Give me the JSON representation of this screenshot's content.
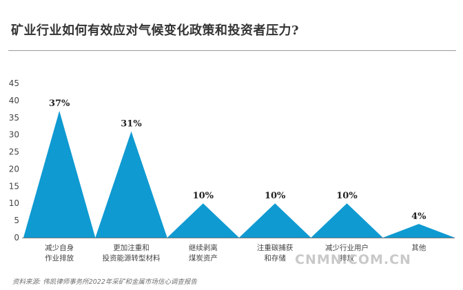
{
  "title": "矿业行业如何有效应对气候变化政策和投资者压力?",
  "source": "资料来源: 伟凯律师事务所2022年采矿和金属市场信心调查报告",
  "watermark": "CNMN.COM.CN",
  "chart_data": {
    "type": "area",
    "shape": "triangle",
    "categories": [
      [
        "减少自身",
        "作业排放"
      ],
      [
        "更加注重和",
        "投资能源转型材料"
      ],
      [
        "继续剥离",
        "煤炭资产"
      ],
      [
        "注重碳捕获",
        "和存储"
      ],
      [
        "减少行业用户",
        "排放"
      ],
      [
        "其他"
      ]
    ],
    "values": [
      37,
      31,
      10,
      10,
      10,
      4
    ],
    "value_labels": [
      "37%",
      "31%",
      "10%",
      "10%",
      "10%",
      "4%"
    ],
    "ylim": [
      0,
      45
    ],
    "yticks": [
      0,
      5,
      10,
      15,
      20,
      25,
      30,
      35,
      40,
      45
    ],
    "grid": false,
    "color": "#0f9ad1"
  }
}
